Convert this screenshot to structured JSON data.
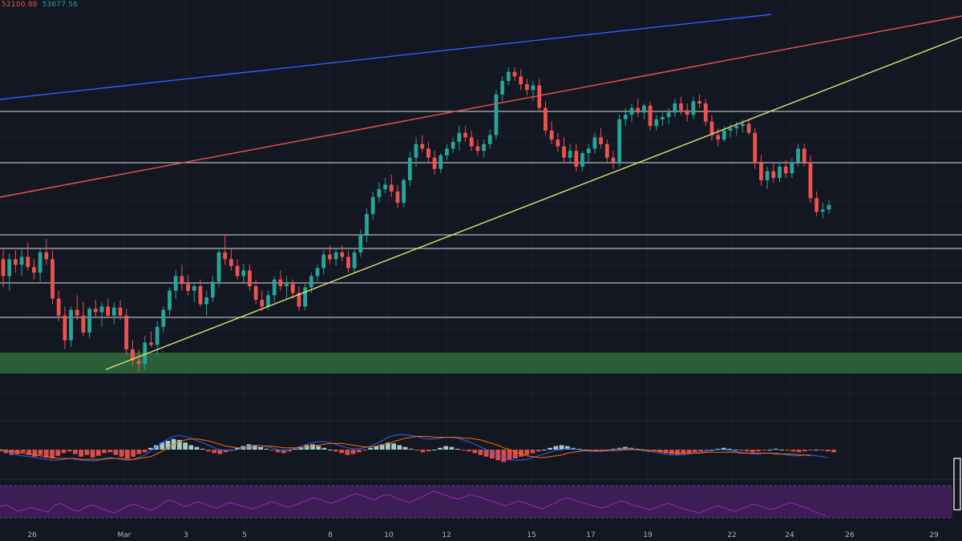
{
  "ohlc_readout": {
    "low": "52100.98",
    "close": "53677.56"
  },
  "colors": {
    "up": "#26a69a",
    "down": "#ef5350",
    "background": "#131722",
    "support_zone": "#2e6b3a",
    "blue_line": "#2962ff",
    "red_line": "#ef5350",
    "yellow_line": "#e6e070",
    "rsi_band": "#3d1f56",
    "rsi_line": "#9c27b0",
    "macd_line": "#2962ff",
    "signal_line": "#ff6d00"
  },
  "chart_data": {
    "type": "candlestick",
    "title": "",
    "x_tick_labels": [
      "26",
      "Mar",
      "3",
      "5",
      "8",
      "10",
      "12",
      "15",
      "17",
      "19",
      "22",
      "24",
      "26",
      "29"
    ],
    "price_levels": [
      1,
      2,
      3,
      4,
      5,
      6
    ],
    "support_zone": "green band",
    "trendlines": [
      "blue",
      "red",
      "yellow"
    ],
    "candles": [
      {
        "o": 290,
        "h": 300,
        "l": 265,
        "c": 275
      },
      {
        "o": 275,
        "h": 295,
        "l": 262,
        "c": 290
      },
      {
        "o": 290,
        "h": 298,
        "l": 278,
        "c": 285
      },
      {
        "o": 285,
        "h": 300,
        "l": 275,
        "c": 292
      },
      {
        "o": 292,
        "h": 305,
        "l": 280,
        "c": 283
      },
      {
        "o": 283,
        "h": 290,
        "l": 272,
        "c": 278
      },
      {
        "o": 278,
        "h": 300,
        "l": 270,
        "c": 296
      },
      {
        "o": 296,
        "h": 308,
        "l": 285,
        "c": 290
      },
      {
        "o": 290,
        "h": 298,
        "l": 250,
        "c": 255
      },
      {
        "o": 255,
        "h": 262,
        "l": 235,
        "c": 240
      },
      {
        "o": 240,
        "h": 248,
        "l": 210,
        "c": 218
      },
      {
        "o": 218,
        "h": 248,
        "l": 212,
        "c": 245
      },
      {
        "o": 245,
        "h": 258,
        "l": 236,
        "c": 240
      },
      {
        "o": 240,
        "h": 252,
        "l": 222,
        "c": 225
      },
      {
        "o": 225,
        "h": 248,
        "l": 220,
        "c": 246
      },
      {
        "o": 246,
        "h": 254,
        "l": 238,
        "c": 243
      },
      {
        "o": 243,
        "h": 252,
        "l": 230,
        "c": 248
      },
      {
        "o": 248,
        "h": 255,
        "l": 238,
        "c": 240
      },
      {
        "o": 240,
        "h": 252,
        "l": 232,
        "c": 247
      },
      {
        "o": 247,
        "h": 254,
        "l": 236,
        "c": 240
      },
      {
        "o": 240,
        "h": 246,
        "l": 205,
        "c": 210
      },
      {
        "o": 210,
        "h": 218,
        "l": 195,
        "c": 200
      },
      {
        "o": 200,
        "h": 210,
        "l": 190,
        "c": 197
      },
      {
        "o": 197,
        "h": 222,
        "l": 192,
        "c": 216
      },
      {
        "o": 216,
        "h": 226,
        "l": 212,
        "c": 214
      },
      {
        "o": 214,
        "h": 235,
        "l": 205,
        "c": 230
      },
      {
        "o": 230,
        "h": 248,
        "l": 225,
        "c": 245
      },
      {
        "o": 245,
        "h": 265,
        "l": 240,
        "c": 262
      },
      {
        "o": 262,
        "h": 280,
        "l": 255,
        "c": 275
      },
      {
        "o": 275,
        "h": 285,
        "l": 262,
        "c": 268
      },
      {
        "o": 268,
        "h": 276,
        "l": 258,
        "c": 262
      },
      {
        "o": 262,
        "h": 270,
        "l": 252,
        "c": 266
      },
      {
        "o": 266,
        "h": 272,
        "l": 248,
        "c": 250
      },
      {
        "o": 250,
        "h": 262,
        "l": 240,
        "c": 256
      },
      {
        "o": 256,
        "h": 275,
        "l": 252,
        "c": 270
      },
      {
        "o": 270,
        "h": 300,
        "l": 265,
        "c": 296
      },
      {
        "o": 296,
        "h": 312,
        "l": 285,
        "c": 290
      },
      {
        "o": 290,
        "h": 300,
        "l": 280,
        "c": 284
      },
      {
        "o": 284,
        "h": 290,
        "l": 272,
        "c": 275
      },
      {
        "o": 275,
        "h": 286,
        "l": 268,
        "c": 280
      },
      {
        "o": 280,
        "h": 285,
        "l": 262,
        "c": 266
      },
      {
        "o": 266,
        "h": 272,
        "l": 250,
        "c": 254
      },
      {
        "o": 254,
        "h": 262,
        "l": 244,
        "c": 248
      },
      {
        "o": 248,
        "h": 262,
        "l": 245,
        "c": 258
      },
      {
        "o": 258,
        "h": 275,
        "l": 252,
        "c": 272
      },
      {
        "o": 272,
        "h": 280,
        "l": 262,
        "c": 266
      },
      {
        "o": 266,
        "h": 275,
        "l": 255,
        "c": 268
      },
      {
        "o": 268,
        "h": 272,
        "l": 255,
        "c": 260
      },
      {
        "o": 260,
        "h": 266,
        "l": 244,
        "c": 248
      },
      {
        "o": 248,
        "h": 268,
        "l": 245,
        "c": 265
      },
      {
        "o": 265,
        "h": 278,
        "l": 260,
        "c": 275
      },
      {
        "o": 275,
        "h": 285,
        "l": 270,
        "c": 282
      },
      {
        "o": 282,
        "h": 298,
        "l": 276,
        "c": 294
      },
      {
        "o": 294,
        "h": 302,
        "l": 286,
        "c": 290
      },
      {
        "o": 290,
        "h": 300,
        "l": 284,
        "c": 296
      },
      {
        "o": 296,
        "h": 302,
        "l": 288,
        "c": 292
      },
      {
        "o": 292,
        "h": 298,
        "l": 278,
        "c": 282
      },
      {
        "o": 282,
        "h": 300,
        "l": 278,
        "c": 296
      },
      {
        "o": 296,
        "h": 316,
        "l": 292,
        "c": 312
      },
      {
        "o": 312,
        "h": 335,
        "l": 305,
        "c": 330
      },
      {
        "o": 330,
        "h": 350,
        "l": 325,
        "c": 345
      },
      {
        "o": 345,
        "h": 358,
        "l": 340,
        "c": 352
      },
      {
        "o": 352,
        "h": 362,
        "l": 348,
        "c": 356
      },
      {
        "o": 356,
        "h": 365,
        "l": 345,
        "c": 350
      },
      {
        "o": 350,
        "h": 356,
        "l": 335,
        "c": 340
      },
      {
        "o": 340,
        "h": 362,
        "l": 336,
        "c": 360
      },
      {
        "o": 360,
        "h": 385,
        "l": 355,
        "c": 380
      },
      {
        "o": 380,
        "h": 398,
        "l": 372,
        "c": 392
      },
      {
        "o": 392,
        "h": 400,
        "l": 385,
        "c": 388
      },
      {
        "o": 388,
        "h": 394,
        "l": 375,
        "c": 380
      },
      {
        "o": 380,
        "h": 386,
        "l": 365,
        "c": 370
      },
      {
        "o": 370,
        "h": 384,
        "l": 366,
        "c": 382
      },
      {
        "o": 382,
        "h": 392,
        "l": 378,
        "c": 388
      },
      {
        "o": 388,
        "h": 398,
        "l": 384,
        "c": 394
      },
      {
        "o": 394,
        "h": 408,
        "l": 386,
        "c": 402
      },
      {
        "o": 402,
        "h": 408,
        "l": 394,
        "c": 398
      },
      {
        "o": 398,
        "h": 404,
        "l": 386,
        "c": 390
      },
      {
        "o": 390,
        "h": 396,
        "l": 382,
        "c": 386
      },
      {
        "o": 386,
        "h": 396,
        "l": 380,
        "c": 392
      },
      {
        "o": 392,
        "h": 405,
        "l": 388,
        "c": 400
      },
      {
        "o": 400,
        "h": 440,
        "l": 396,
        "c": 436
      },
      {
        "o": 436,
        "h": 452,
        "l": 430,
        "c": 448
      },
      {
        "o": 448,
        "h": 460,
        "l": 444,
        "c": 456
      },
      {
        "o": 456,
        "h": 460,
        "l": 448,
        "c": 452
      },
      {
        "o": 452,
        "h": 458,
        "l": 440,
        "c": 445
      },
      {
        "o": 445,
        "h": 450,
        "l": 435,
        "c": 440
      },
      {
        "o": 440,
        "h": 448,
        "l": 430,
        "c": 444
      },
      {
        "o": 444,
        "h": 450,
        "l": 420,
        "c": 424
      },
      {
        "o": 424,
        "h": 430,
        "l": 400,
        "c": 404
      },
      {
        "o": 404,
        "h": 412,
        "l": 392,
        "c": 396
      },
      {
        "o": 396,
        "h": 402,
        "l": 385,
        "c": 390
      },
      {
        "o": 390,
        "h": 398,
        "l": 375,
        "c": 380
      },
      {
        "o": 380,
        "h": 392,
        "l": 376,
        "c": 386
      },
      {
        "o": 386,
        "h": 392,
        "l": 368,
        "c": 372
      },
      {
        "o": 372,
        "h": 386,
        "l": 368,
        "c": 384
      },
      {
        "o": 384,
        "h": 392,
        "l": 376,
        "c": 388
      },
      {
        "o": 388,
        "h": 402,
        "l": 384,
        "c": 398
      },
      {
        "o": 398,
        "h": 406,
        "l": 388,
        "c": 392
      },
      {
        "o": 392,
        "h": 396,
        "l": 376,
        "c": 380
      },
      {
        "o": 380,
        "h": 386,
        "l": 370,
        "c": 376
      },
      {
        "o": 376,
        "h": 418,
        "l": 372,
        "c": 414
      },
      {
        "o": 414,
        "h": 424,
        "l": 408,
        "c": 418
      },
      {
        "o": 418,
        "h": 428,
        "l": 412,
        "c": 424
      },
      {
        "o": 424,
        "h": 432,
        "l": 416,
        "c": 420
      },
      {
        "o": 420,
        "h": 428,
        "l": 414,
        "c": 426
      },
      {
        "o": 426,
        "h": 430,
        "l": 404,
        "c": 408
      },
      {
        "o": 408,
        "h": 418,
        "l": 404,
        "c": 414
      },
      {
        "o": 414,
        "h": 420,
        "l": 408,
        "c": 416
      },
      {
        "o": 416,
        "h": 424,
        "l": 410,
        "c": 420
      },
      {
        "o": 420,
        "h": 432,
        "l": 416,
        "c": 428
      },
      {
        "o": 428,
        "h": 434,
        "l": 418,
        "c": 422
      },
      {
        "o": 422,
        "h": 428,
        "l": 412,
        "c": 418
      },
      {
        "o": 418,
        "h": 434,
        "l": 414,
        "c": 430
      },
      {
        "o": 430,
        "h": 436,
        "l": 424,
        "c": 428
      },
      {
        "o": 428,
        "h": 432,
        "l": 408,
        "c": 412
      },
      {
        "o": 412,
        "h": 418,
        "l": 395,
        "c": 400
      },
      {
        "o": 400,
        "h": 406,
        "l": 390,
        "c": 396
      },
      {
        "o": 396,
        "h": 408,
        "l": 394,
        "c": 404
      },
      {
        "o": 404,
        "h": 410,
        "l": 398,
        "c": 406
      },
      {
        "o": 406,
        "h": 412,
        "l": 400,
        "c": 408
      },
      {
        "o": 408,
        "h": 414,
        "l": 402,
        "c": 410
      },
      {
        "o": 410,
        "h": 414,
        "l": 400,
        "c": 402
      },
      {
        "o": 402,
        "h": 406,
        "l": 370,
        "c": 375
      },
      {
        "o": 375,
        "h": 382,
        "l": 355,
        "c": 360
      },
      {
        "o": 360,
        "h": 372,
        "l": 352,
        "c": 368
      },
      {
        "o": 368,
        "h": 375,
        "l": 358,
        "c": 362
      },
      {
        "o": 362,
        "h": 376,
        "l": 358,
        "c": 372
      },
      {
        "o": 372,
        "h": 378,
        "l": 362,
        "c": 366
      },
      {
        "o": 366,
        "h": 380,
        "l": 362,
        "c": 376
      },
      {
        "o": 376,
        "h": 392,
        "l": 372,
        "c": 388
      },
      {
        "o": 388,
        "h": 392,
        "l": 372,
        "c": 376
      },
      {
        "o": 376,
        "h": 382,
        "l": 340,
        "c": 344
      },
      {
        "o": 344,
        "h": 350,
        "l": 328,
        "c": 332
      },
      {
        "o": 332,
        "h": 340,
        "l": 326,
        "c": 334
      },
      {
        "o": 334,
        "h": 342,
        "l": 330,
        "c": 338
      }
    ],
    "macd": {
      "histogram": [
        -2,
        -4,
        -6,
        -5,
        -3,
        -6,
        -8,
        -6,
        -9,
        -10,
        -7,
        -4,
        -2,
        -5,
        -8,
        -6,
        -9,
        -7,
        -4,
        -3,
        -6,
        -8,
        -10,
        -8,
        -5,
        -3,
        2,
        5,
        8,
        10,
        12,
        11,
        8,
        5,
        3,
        1,
        -2,
        -4,
        -5,
        -3,
        -1,
        2,
        4,
        6,
        5,
        3,
        1,
        -1,
        -3,
        -4,
        -2,
        1,
        3,
        5,
        6,
        4,
        2,
        0,
        -2,
        -4,
        -6,
        -5,
        -3,
        -1,
        2,
        4,
        6,
        8,
        7,
        5,
        3,
        1,
        -1,
        -3,
        -2,
        0,
        2,
        4,
        3,
        1,
        -1,
        -2,
        -4,
        -6,
        -8,
        -10,
        -12,
        -14,
        -12,
        -10,
        -8,
        -6,
        -4,
        -2,
        0,
        2,
        4,
        5,
        4,
        2,
        1,
        0,
        -1,
        -2,
        -1,
        0,
        1,
        2,
        3,
        2,
        1,
        0,
        -1,
        -2,
        -3,
        -4,
        -5,
        -6,
        -5,
        -4,
        -3,
        -2,
        -1,
        0,
        1,
        2,
        1,
        0,
        -1,
        -2,
        -3,
        -2,
        -1,
        0,
        1,
        0,
        -1,
        -2,
        -3,
        -2,
        -1,
        0,
        -1,
        -2,
        -3
      ],
      "macd": [
        0,
        -2,
        -4,
        -6,
        -7,
        -8,
        -9,
        -10,
        -11,
        -12,
        -12,
        -11,
        -10,
        -11,
        -12,
        -12,
        -13,
        -12,
        -10,
        -9,
        -10,
        -11,
        -12,
        -11,
        -9,
        -6,
        -2,
        3,
        8,
        12,
        15,
        16,
        15,
        13,
        10,
        8,
        5,
        2,
        0,
        -1,
        -1,
        0,
        2,
        4,
        5,
        5,
        4,
        2,
        0,
        -1,
        0,
        2,
        4,
        6,
        8,
        9,
        9,
        8,
        6,
        4,
        2,
        1,
        1,
        2,
        4,
        7,
        10,
        14,
        16,
        17,
        17,
        16,
        15,
        13,
        12,
        12,
        13,
        14,
        14,
        13,
        11,
        9,
        6,
        3,
        0,
        -3,
        -6,
        -9,
        -11,
        -12,
        -12,
        -11,
        -9,
        -7,
        -5,
        -3,
        -1,
        0,
        1,
        1,
        0,
        -1,
        -2,
        -2,
        -2,
        -1,
        0,
        1,
        1,
        1,
        0,
        -1,
        -2,
        -3,
        -4,
        -5,
        -6,
        -6,
        -6,
        -5,
        -4,
        -3,
        -2,
        -1,
        0,
        0,
        -1,
        -2,
        -3,
        -4,
        -5,
        -5,
        -4,
        -4,
        -4,
        -5,
        -6,
        -7,
        -7,
        -6,
        -6,
        -7,
        -8,
        -9
      ],
      "signal": [
        0,
        -1,
        -2,
        -3,
        -4,
        -5,
        -6,
        -7,
        -8,
        -9,
        -10,
        -10,
        -10,
        -10,
        -11,
        -11,
        -11,
        -11,
        -11,
        -10,
        -10,
        -10,
        -11,
        -11,
        -10,
        -9,
        -8,
        -5,
        -2,
        2,
        6,
        9,
        11,
        12,
        12,
        11,
        10,
        8,
        6,
        4,
        3,
        2,
        2,
        2,
        3,
        3,
        4,
        4,
        3,
        2,
        2,
        2,
        2,
        3,
        4,
        5,
        6,
        7,
        7,
        7,
        6,
        5,
        4,
        3,
        3,
        4,
        5,
        7,
        9,
        11,
        13,
        14,
        15,
        15,
        15,
        14,
        14,
        14,
        14,
        14,
        13,
        13,
        12,
        11,
        9,
        7,
        5,
        2,
        0,
        -3,
        -5,
        -7,
        -8,
        -9,
        -9,
        -8,
        -7,
        -6,
        -4,
        -3,
        -2,
        -1,
        -1,
        -1,
        -1,
        -1,
        -1,
        -1,
        0,
        0,
        0,
        0,
        -1,
        -1,
        -2,
        -3,
        -3,
        -4,
        -4,
        -4,
        -4,
        -4,
        -3,
        -3,
        -3,
        -3,
        -3,
        -3,
        -4,
        -4,
        -4,
        -4,
        -4,
        -4,
        -5,
        -5,
        -5,
        -5,
        -6,
        -6,
        -7
      ]
    },
    "rsi": [
      44,
      46,
      42,
      38,
      40,
      43,
      41,
      39,
      37,
      45,
      48,
      44,
      40,
      38,
      42,
      46,
      44,
      41,
      38,
      36,
      40,
      44,
      47,
      45,
      42,
      39,
      43,
      48,
      52,
      50,
      46,
      44,
      48,
      50,
      47,
      44,
      42,
      46,
      49,
      47,
      45,
      43,
      41,
      44,
      47,
      50,
      48,
      45,
      43,
      46,
      49,
      52,
      55,
      53,
      50,
      48,
      51,
      54,
      57,
      60,
      58,
      55,
      52,
      56,
      59,
      57,
      54,
      51,
      49,
      53,
      56,
      60,
      63,
      61,
      58,
      55,
      53,
      56,
      59,
      57,
      55,
      52,
      50,
      47,
      45,
      48,
      51,
      49,
      46,
      43,
      41,
      45,
      48,
      52,
      55,
      53,
      50,
      48,
      46,
      44,
      42,
      45,
      48,
      51,
      49,
      46,
      44,
      42,
      40,
      43,
      46,
      48,
      45,
      42,
      40,
      38,
      36,
      39,
      42,
      45,
      43,
      40,
      38,
      41,
      44,
      47,
      45,
      42,
      40,
      43,
      46,
      49,
      47,
      44,
      42,
      38,
      35,
      33
    ]
  }
}
